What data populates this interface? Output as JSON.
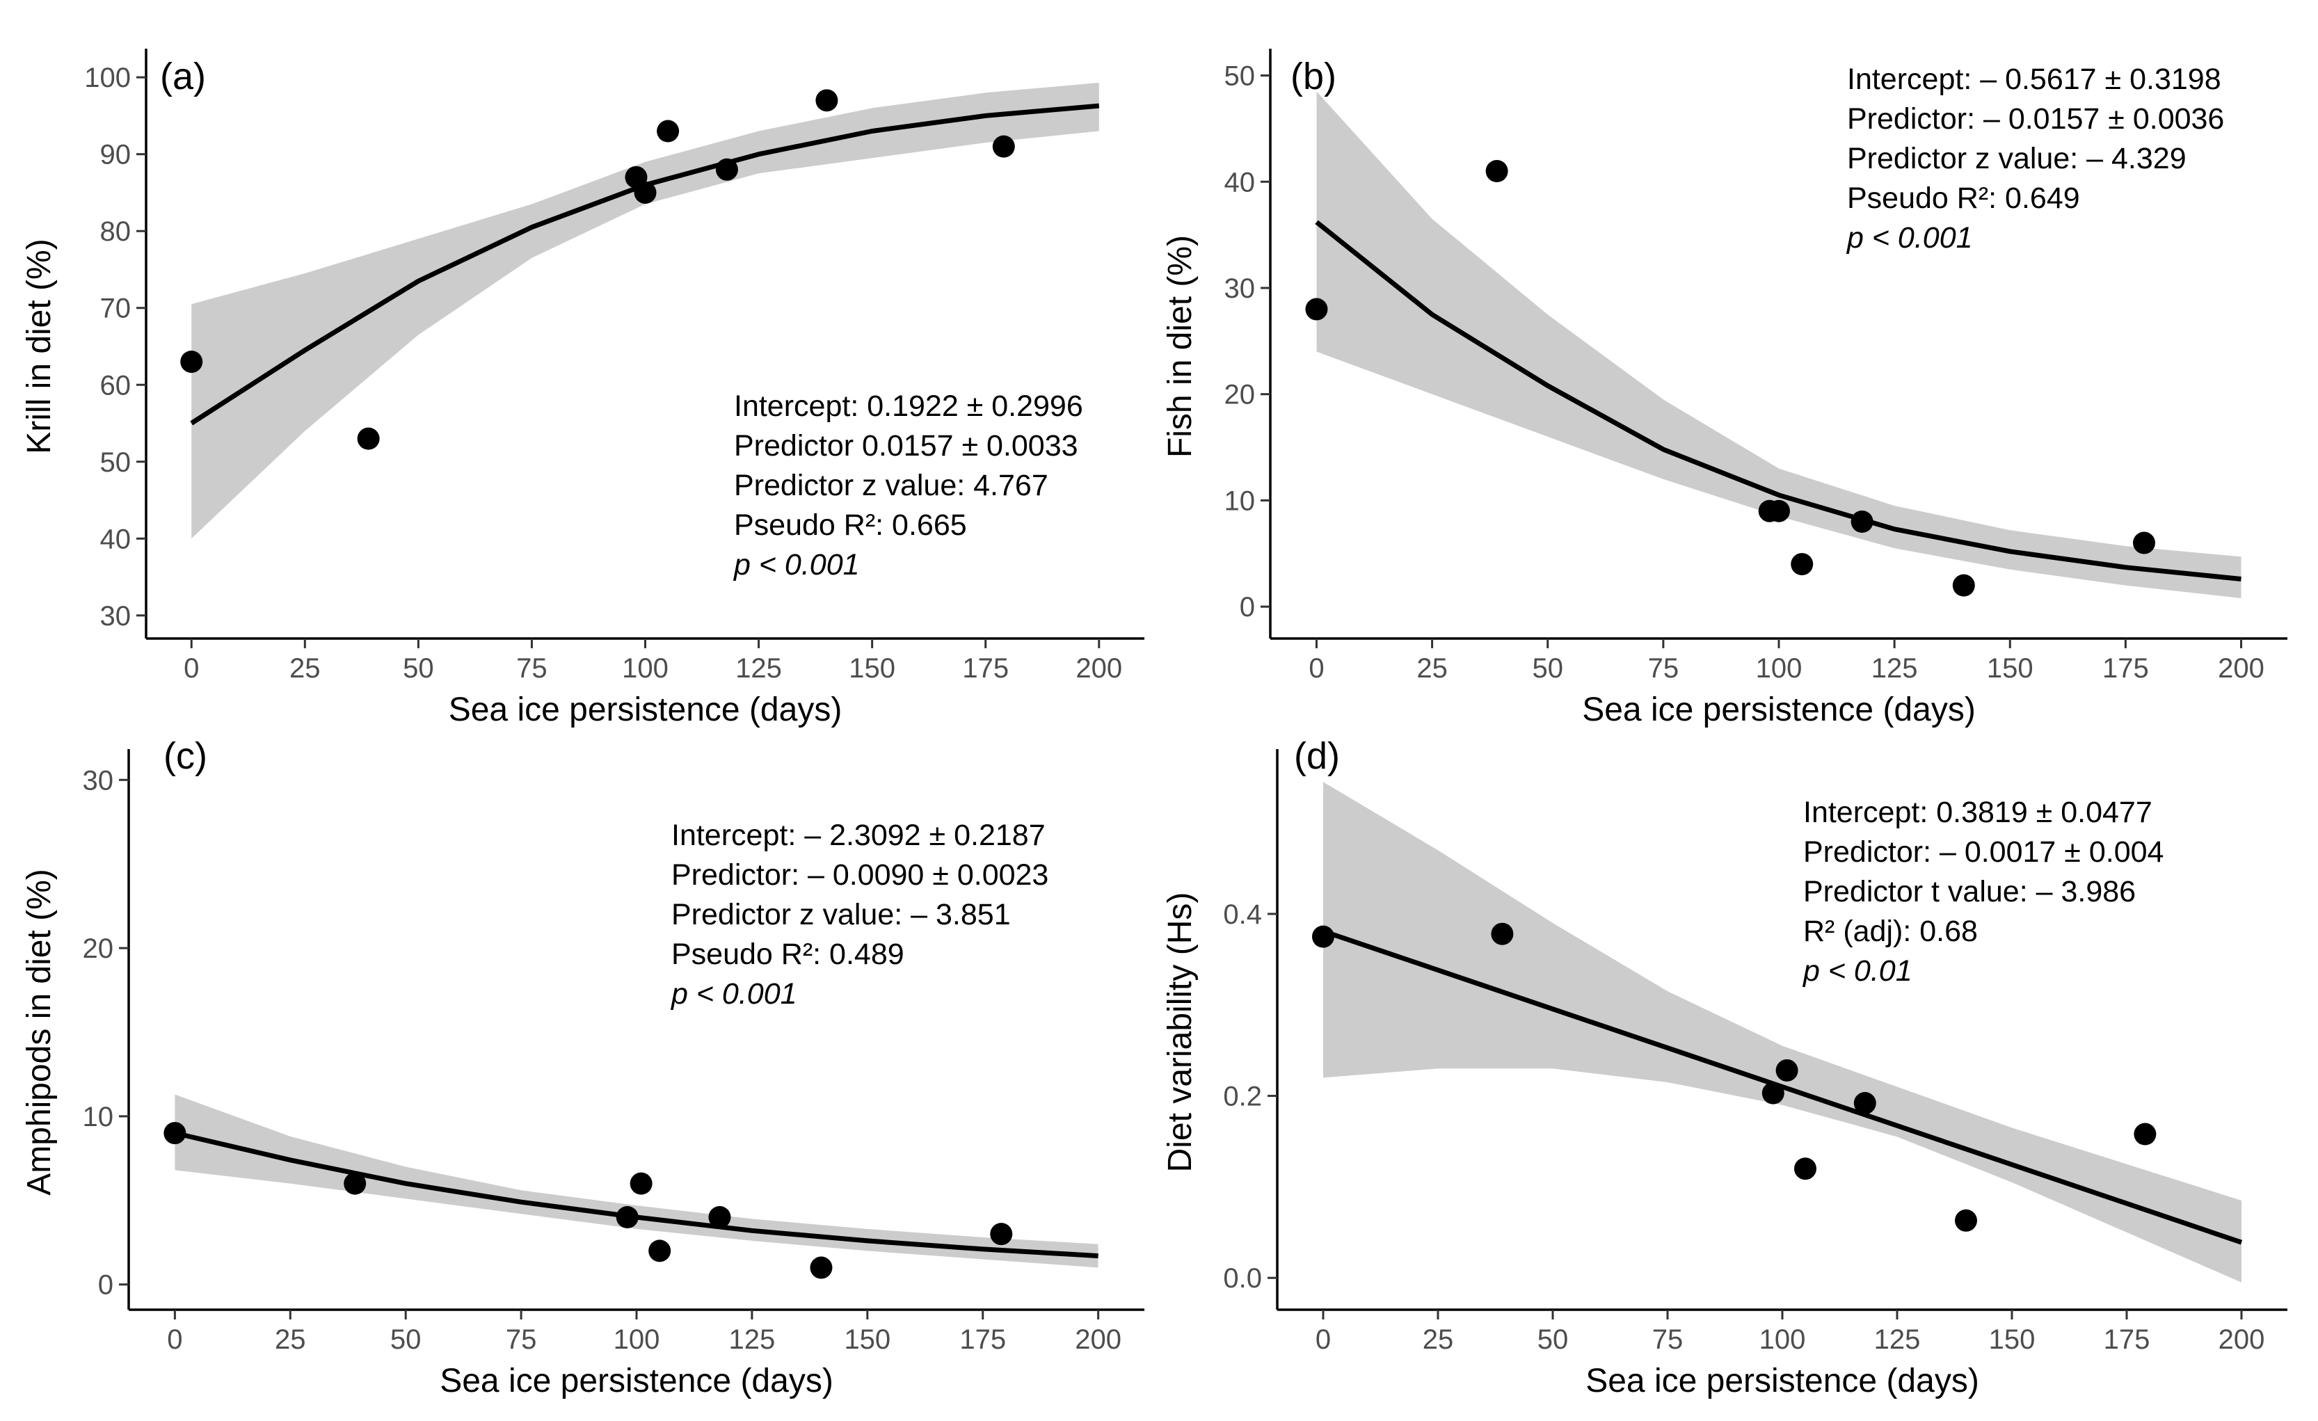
{
  "chart_data": [
    {
      "id": "a",
      "type": "scatter",
      "panel_label": "(a)",
      "title": "",
      "xlabel": "Sea ice persistence (days)",
      "ylabel": "Krill in diet (%)",
      "xlim": [
        -10,
        210
      ],
      "ylim": [
        27,
        103
      ],
      "xticks": [
        0,
        25,
        50,
        75,
        100,
        125,
        150,
        175,
        200
      ],
      "yticks": [
        30,
        40,
        50,
        60,
        70,
        80,
        90,
        100
      ],
      "x": [
        0,
        39,
        98,
        100,
        105,
        118,
        140,
        179
      ],
      "y": [
        63,
        53,
        87,
        85,
        93,
        88,
        97,
        91
      ],
      "fit": {
        "x": [
          0,
          25,
          50,
          75,
          100,
          125,
          150,
          175,
          200
        ],
        "y": [
          55,
          64.5,
          73.5,
          80.5,
          86,
          90,
          93,
          95,
          96.3
        ]
      },
      "ci": {
        "x": [
          0,
          25,
          50,
          75,
          100,
          125,
          150,
          175,
          200
        ],
        "lower": [
          40,
          54,
          66.5,
          76.5,
          83.5,
          87.5,
          89.5,
          91.5,
          93
        ],
        "upper": [
          70.5,
          74.5,
          79,
          83.5,
          89,
          93,
          96,
          98,
          99.3
        ]
      },
      "annotation_pos": "bottom-right",
      "annotations": [
        "Intercept: 0.1922 ± 0.2996",
        "Predictor 0.0157 ± 0.0033",
        "Predictor z value: 4.767",
        "Pseudo R²: 0.665",
        "p < 0.001"
      ]
    },
    {
      "id": "b",
      "type": "scatter",
      "panel_label": "(b)",
      "title": "",
      "xlabel": "Sea ice persistence (days)",
      "ylabel": "Fish in diet (%)",
      "xlim": [
        -10,
        210
      ],
      "ylim": [
        -3,
        52
      ],
      "xticks": [
        0,
        25,
        50,
        75,
        100,
        125,
        150,
        175,
        200
      ],
      "yticks": [
        0,
        10,
        20,
        30,
        40,
        50
      ],
      "x": [
        0,
        39,
        98,
        100,
        105,
        118,
        140,
        179
      ],
      "y": [
        28,
        41,
        9,
        9,
        4,
        8,
        2,
        6
      ],
      "fit": {
        "x": [
          0,
          25,
          50,
          75,
          100,
          125,
          150,
          175,
          200
        ],
        "y": [
          36.2,
          27.5,
          20.8,
          14.8,
          10.5,
          7.3,
          5.2,
          3.7,
          2.6
        ]
      },
      "ci": {
        "x": [
          0,
          25,
          50,
          75,
          100,
          125,
          150,
          175,
          200
        ],
        "lower": [
          24,
          20,
          16,
          12,
          8.5,
          5.5,
          3.5,
          2,
          0.8
        ],
        "upper": [
          48.5,
          36.5,
          27.5,
          19.5,
          13,
          9.5,
          7.2,
          5.7,
          4.7
        ]
      },
      "annotation_pos": "top-right",
      "annotations": [
        "Intercept: – 0.5617 ± 0.3198",
        "Predictor: – 0.0157 ± 0.0036",
        "Predictor z value: – 4.329",
        "Pseudo R²: 0.649",
        "p < 0.001"
      ]
    },
    {
      "id": "c",
      "type": "scatter",
      "panel_label": "(c)",
      "title": "",
      "xlabel": "Sea ice persistence (days)",
      "ylabel": "Amphipods in diet (%)",
      "xlim": [
        -10,
        210
      ],
      "ylim": [
        -1.5,
        31.5
      ],
      "xticks": [
        0,
        25,
        50,
        75,
        100,
        125,
        150,
        175,
        200
      ],
      "yticks": [
        0,
        10,
        20,
        30
      ],
      "x": [
        0,
        39,
        98,
        101,
        105,
        118,
        140,
        179
      ],
      "y": [
        9,
        6,
        4,
        6,
        2,
        4,
        1,
        3
      ],
      "fit": {
        "x": [
          0,
          25,
          50,
          75,
          100,
          125,
          150,
          175,
          200
        ],
        "y": [
          9,
          7.4,
          6.0,
          4.9,
          4.0,
          3.2,
          2.6,
          2.1,
          1.7
        ]
      },
      "ci": {
        "x": [
          0,
          25,
          50,
          75,
          100,
          125,
          150,
          175,
          200
        ],
        "lower": [
          6.8,
          6.0,
          5.1,
          4.2,
          3.3,
          2.6,
          2.0,
          1.5,
          1.0
        ],
        "upper": [
          11.3,
          8.8,
          7.0,
          5.6,
          4.7,
          3.9,
          3.3,
          2.8,
          2.4
        ]
      },
      "annotation_pos": "top-right",
      "annotations": [
        "Intercept: – 2.3092 ± 0.2187",
        "Predictor: – 0.0090 ± 0.0023",
        "Predictor z value: – 3.851",
        "Pseudo R²: 0.489",
        "p < 0.001"
      ]
    },
    {
      "id": "d",
      "type": "scatter",
      "panel_label": "(d)",
      "title": "",
      "xlabel": "Sea ice persistence (days)",
      "ylabel": "Diet variability (Hs)",
      "xlim": [
        -10,
        210
      ],
      "ylim": [
        -0.035,
        0.575
      ],
      "xticks": [
        0,
        25,
        50,
        75,
        100,
        125,
        150,
        175,
        200
      ],
      "yticks": [
        0.0,
        0.2,
        0.4
      ],
      "ytick_labels": [
        "0.0",
        "0.2",
        "0.4"
      ],
      "x": [
        0,
        39,
        98,
        101,
        105,
        118,
        140,
        179
      ],
      "y": [
        0.375,
        0.378,
        0.203,
        0.228,
        0.12,
        0.192,
        0.063,
        0.158
      ],
      "fit": {
        "x": [
          0,
          200
        ],
        "y": [
          0.381,
          0.039
        ]
      },
      "ci": {
        "x": [
          0,
          25,
          50,
          75,
          100,
          125,
          150,
          175,
          200
        ],
        "lower": [
          0.22,
          0.23,
          0.23,
          0.215,
          0.19,
          0.155,
          0.105,
          0.05,
          -0.005
        ],
        "upper": [
          0.545,
          0.47,
          0.39,
          0.315,
          0.255,
          0.21,
          0.165,
          0.125,
          0.085
        ]
      },
      "annotation_pos": "top-right",
      "annotations": [
        "Intercept: 0.3819 ± 0.0477",
        "Predictor: – 0.0017 ± 0.004",
        "Predictor t value: – 3.986",
        "R² (adj): 0.68",
        "p < 0.01"
      ]
    }
  ]
}
